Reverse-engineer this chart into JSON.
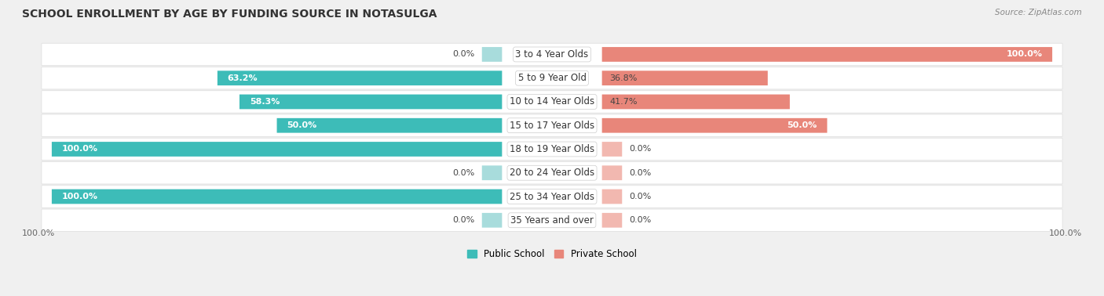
{
  "title": "SCHOOL ENROLLMENT BY AGE BY FUNDING SOURCE IN NOTASULGA",
  "source": "Source: ZipAtlas.com",
  "categories": [
    "3 to 4 Year Olds",
    "5 to 9 Year Old",
    "10 to 14 Year Olds",
    "15 to 17 Year Olds",
    "18 to 19 Year Olds",
    "20 to 24 Year Olds",
    "25 to 34 Year Olds",
    "35 Years and over"
  ],
  "public_values": [
    0.0,
    63.2,
    58.3,
    50.0,
    100.0,
    0.0,
    100.0,
    0.0
  ],
  "private_values": [
    100.0,
    36.8,
    41.7,
    50.0,
    0.0,
    0.0,
    0.0,
    0.0
  ],
  "public_color": "#3DBCB8",
  "private_color": "#E8867A",
  "public_color_light": "#A8DCDC",
  "private_color_light": "#F2B8B0",
  "bg_color": "#f0f0f0",
  "bar_bg_color": "#ffffff",
  "row_bg_color": "#f7f7f7",
  "title_fontsize": 10,
  "label_fontsize": 8,
  "cat_fontsize": 8.5,
  "bar_height": 0.6,
  "x_max": 100,
  "stub_size": 8,
  "x_left_label": "100.0%",
  "x_right_label": "100.0%"
}
